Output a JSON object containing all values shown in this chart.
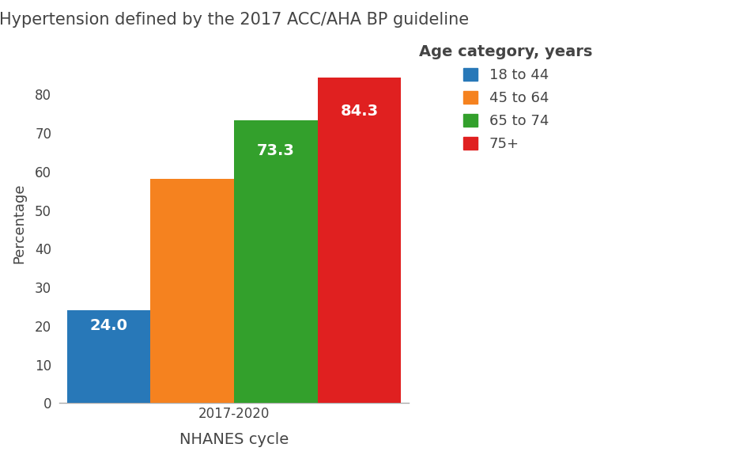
{
  "title": "Hypertension defined by the 2017 ACC/AHA BP guideline",
  "xlabel": "NHANES cycle",
  "ylabel": "Percentage",
  "cycle": "2017-2020",
  "categories": [
    "18 to 44",
    "45 to 64",
    "65 to 74",
    "75+"
  ],
  "values": [
    24.0,
    58.1,
    73.3,
    84.3
  ],
  "colors": [
    "#2878b8",
    "#f5821f",
    "#33a02c",
    "#e02020"
  ],
  "label_colors": [
    "white",
    "#f5821f",
    "white",
    "white"
  ],
  "ylim": [
    0,
    93
  ],
  "yticks": [
    0,
    10,
    20,
    30,
    40,
    50,
    60,
    70,
    80
  ],
  "title_fontsize": 15,
  "label_fontsize": 13,
  "tick_fontsize": 12,
  "legend_title": "Age category, years",
  "background_color": "#ffffff",
  "bar_width": 0.22,
  "bar_spacing": 0.0,
  "text_color": "#444444"
}
